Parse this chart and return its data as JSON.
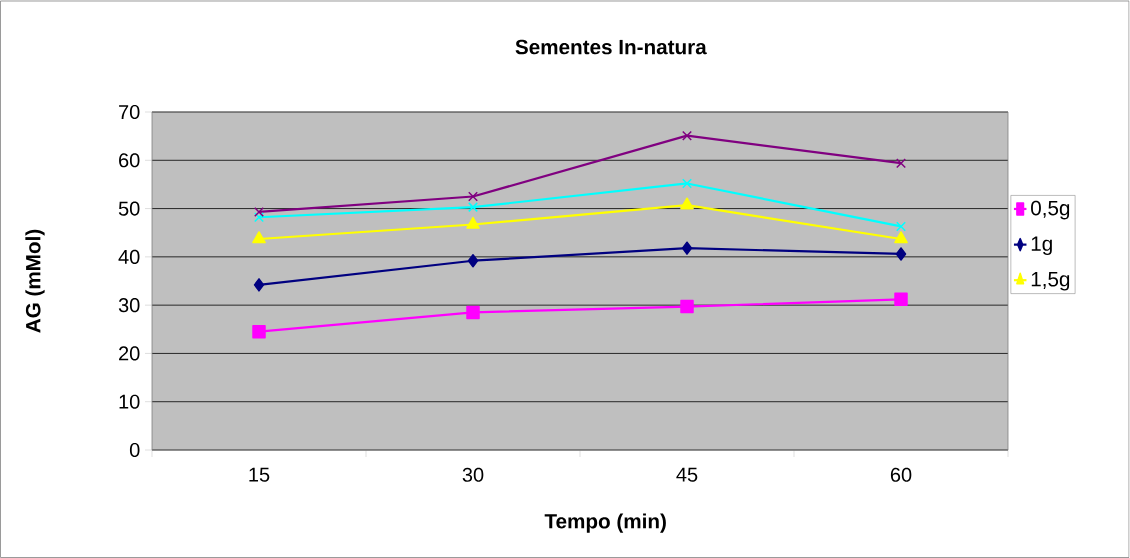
{
  "chart_data": {
    "type": "line",
    "title": "Sementes In-natura",
    "xlabel": "Tempo (min)",
    "ylabel": "AG (mMol)",
    "categories": [
      "15",
      "30",
      "45",
      "60"
    ],
    "series": [
      {
        "name": "0,5g",
        "color": "#ff00ff",
        "marker": "square",
        "values": [
          24.5,
          28.5,
          29.7,
          31.2
        ]
      },
      {
        "name": "1g",
        "color": "#000080",
        "marker": "diamond",
        "values": [
          34.2,
          39.2,
          41.8,
          40.6
        ]
      },
      {
        "name": "1,5g",
        "color": "#ffff00",
        "marker": "triangle",
        "values": [
          43.7,
          46.7,
          50.7,
          43.7
        ]
      },
      {
        "color": "#00ffff",
        "marker": "cross",
        "values": [
          48.2,
          50.3,
          55.2,
          46.3
        ]
      },
      {
        "color": "#800080",
        "marker": "cross",
        "values": [
          49.3,
          52.5,
          65.1,
          59.4
        ]
      }
    ],
    "ylim": [
      0,
      70
    ],
    "yticks": [
      0,
      10,
      20,
      30,
      40,
      50,
      60,
      70
    ],
    "grid": "y",
    "legend": "right",
    "line_style": "solid"
  }
}
